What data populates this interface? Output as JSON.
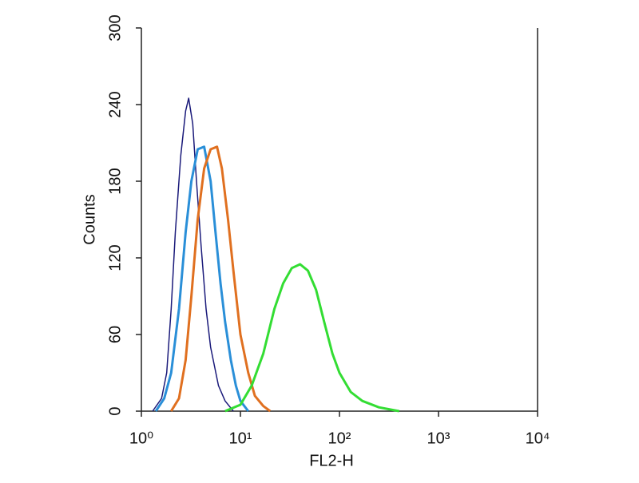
{
  "chart_data": {
    "type": "line",
    "xlabel": "FL2-H",
    "ylabel": "Counts",
    "xscale": "log",
    "xlim": [
      1,
      10000
    ],
    "xticks": [
      {
        "value": 1,
        "label": "10⁰"
      },
      {
        "value": 10,
        "label": "10¹"
      },
      {
        "value": 100,
        "label": "10²"
      },
      {
        "value": 1000,
        "label": "10³"
      },
      {
        "value": 10000,
        "label": "10⁴"
      }
    ],
    "ylim": [
      0,
      300
    ],
    "yticks": [
      0,
      60,
      120,
      180,
      240,
      300
    ],
    "series": [
      {
        "color": "#1a1a7a",
        "x": [
          1.3,
          1.6,
          1.8,
          2.0,
          2.2,
          2.5,
          2.8,
          3.0,
          3.3,
          3.6,
          4.0,
          4.5,
          5.0,
          6.0,
          7.0,
          8.5
        ],
        "values": [
          0,
          10,
          30,
          80,
          140,
          200,
          235,
          245,
          225,
          180,
          130,
          80,
          50,
          20,
          8,
          0
        ]
      },
      {
        "color": "#2a8fd8",
        "x": [
          1.4,
          1.7,
          2.0,
          2.4,
          2.8,
          3.2,
          3.7,
          4.3,
          5.0,
          5.6,
          6.3,
          7.0,
          8.0,
          9.0,
          10,
          12
        ],
        "values": [
          0,
          10,
          30,
          80,
          140,
          180,
          205,
          207,
          180,
          140,
          100,
          70,
          40,
          20,
          8,
          0
        ]
      },
      {
        "color": "#e07020",
        "x": [
          2.0,
          2.4,
          2.8,
          3.2,
          3.7,
          4.3,
          5.0,
          5.8,
          6.5,
          7.5,
          8.5,
          10,
          12,
          14,
          17,
          20
        ],
        "values": [
          0,
          10,
          40,
          90,
          150,
          190,
          205,
          207,
          190,
          150,
          110,
          60,
          30,
          12,
          4,
          0
        ]
      },
      {
        "color": "#33dd33",
        "x": [
          7,
          10,
          13,
          17,
          22,
          27,
          33,
          40,
          48,
          58,
          70,
          85,
          100,
          130,
          170,
          250,
          400
        ],
        "values": [
          0,
          5,
          20,
          45,
          80,
          100,
          112,
          115,
          110,
          95,
          70,
          45,
          30,
          15,
          8,
          3,
          0
        ]
      }
    ]
  }
}
